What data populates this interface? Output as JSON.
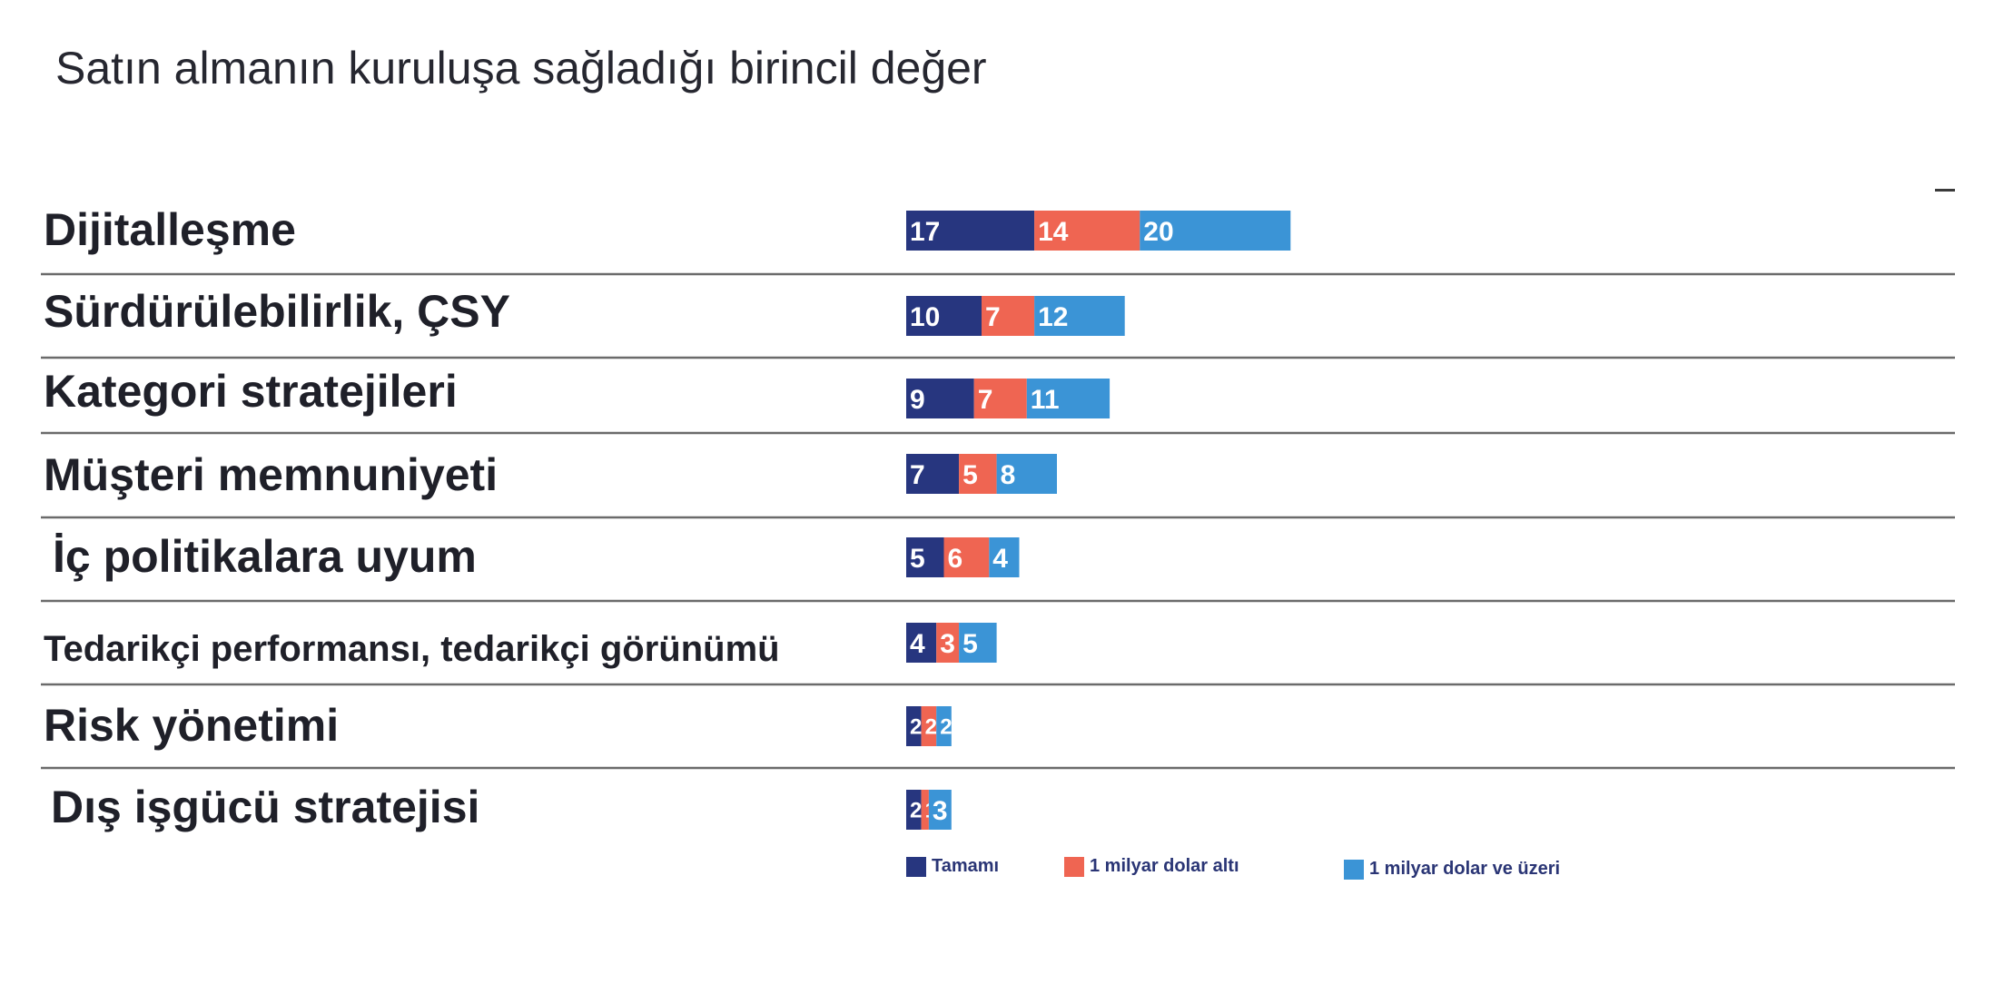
{
  "title": "Satın almanın kuruluşa sağladığı birincil değer",
  "colors": {
    "tamami": "#27367f",
    "alti": "#ef6552",
    "uzeri": "#3b94d6",
    "divider": "#6b6b6b"
  },
  "chart_data": {
    "type": "bar",
    "orientation": "horizontal",
    "stacked": true,
    "title": "Satın almanın kuruluşa sağladığı birincil değer",
    "categories": [
      "Dijitalleşme",
      "Sürdürülebilirlik, ÇSY",
      "Kategori stratejileri",
      "Müşteri memnuniyeti",
      "İç politikalara uyum",
      "Tedarikçi performansı, tedarikçi görünümü",
      "Risk yönetimi",
      "Dış işgücü stratejisi"
    ],
    "series": [
      {
        "name": "Tamamı",
        "values": [
          17,
          10,
          9,
          7,
          5,
          4,
          2,
          2
        ]
      },
      {
        "name": "1 milyar dolar altı",
        "values": [
          14,
          7,
          7,
          5,
          6,
          3,
          2,
          1
        ]
      },
      {
        "name": "1 milyar dolar ve üzeri",
        "values": [
          20,
          12,
          11,
          8,
          4,
          5,
          2,
          3
        ]
      }
    ],
    "legend": "bottom",
    "grid": false
  }
}
